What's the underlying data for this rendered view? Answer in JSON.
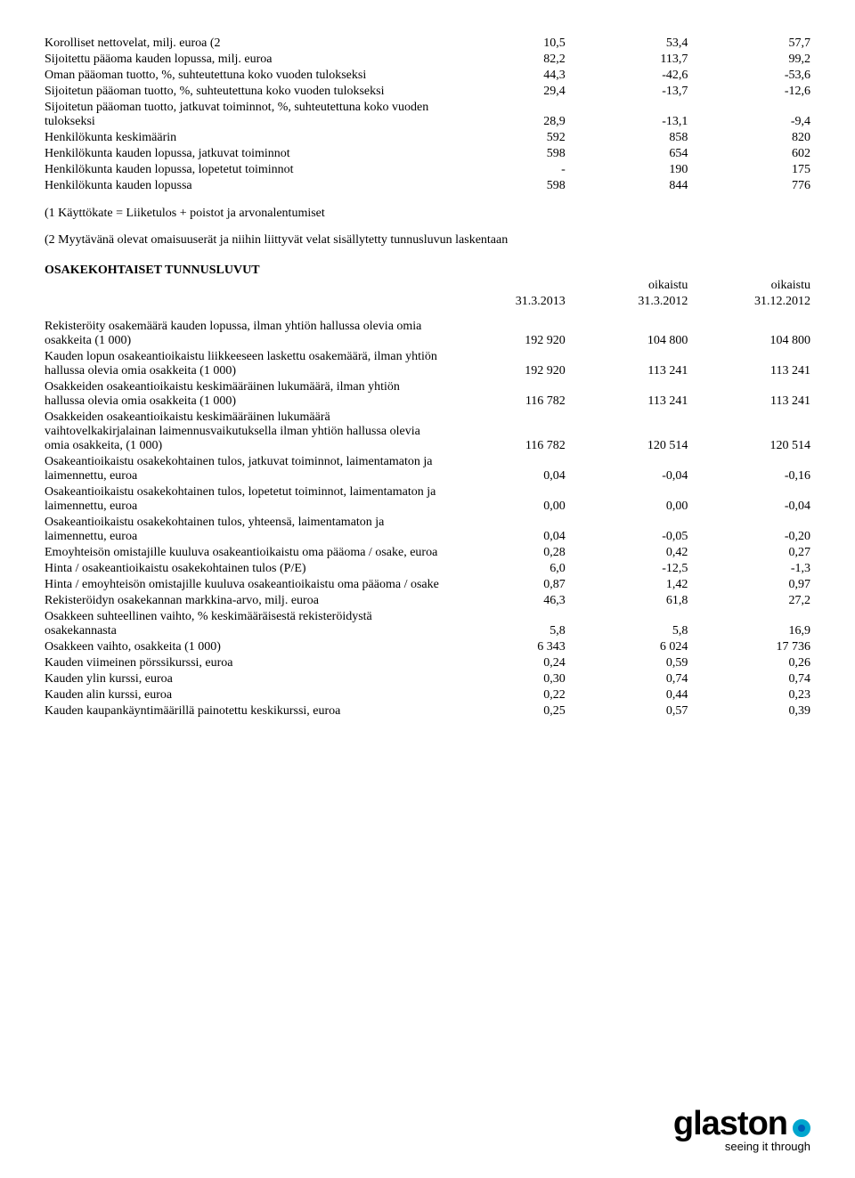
{
  "table1": {
    "rows": [
      {
        "label": "Korolliset nettovelat, milj. euroa (2",
        "c1": "10,5",
        "c2": "53,4",
        "c3": "57,7"
      },
      {
        "label": "Sijoitettu pääoma kauden lopussa, milj. euroa",
        "c1": "82,2",
        "c2": "113,7",
        "c3": "99,2"
      },
      {
        "label": "Oman pääoman tuotto, %, suhteutettuna koko vuoden tulokseksi",
        "c1": "44,3",
        "c2": "-42,6",
        "c3": "-53,6"
      },
      {
        "label": "Sijoitetun pääoman tuotto, %, suhteutettuna koko vuoden tulokseksi",
        "c1": "29,4",
        "c2": "-13,7",
        "c3": "-12,6"
      },
      {
        "label": "Sijoitetun pääoman tuotto, jatkuvat toiminnot, %, suhteutettuna koko vuoden tulokseksi",
        "c1": "28,9",
        "c2": "-13,1",
        "c3": "-9,4"
      },
      {
        "label": "Henkilökunta keskimäärin",
        "c1": "592",
        "c2": "858",
        "c3": "820"
      },
      {
        "label": "Henkilökunta kauden lopussa, jatkuvat toiminnot",
        "c1": "598",
        "c2": "654",
        "c3": "602"
      },
      {
        "label": "Henkilökunta kauden lopussa, lopetetut toiminnot",
        "c1": "-",
        "c2": "190",
        "c3": "175"
      },
      {
        "label": "Henkilökunta kauden lopussa",
        "c1": "598",
        "c2": "844",
        "c3": "776"
      }
    ]
  },
  "footnote1": "(1 Käyttökate = Liiketulos + poistot ja arvonalentumiset",
  "footnote2": "(2 Myytävänä olevat omaisuuserät ja niihin liittyvät velat sisällytetty tunnusluvun laskentaan",
  "section2_title": "OSAKEKOHTAISET TUNNUSLUVUT",
  "headers2": {
    "h1_top": "",
    "h1_bot": "31.3.2013",
    "h2_top": "oikaistu",
    "h2_bot": "31.3.2012",
    "h3_top": "oikaistu",
    "h3_bot": "31.12.2012"
  },
  "table2": {
    "rows": [
      {
        "label": "Rekisteröity osakemäärä kauden lopussa, ilman yhtiön hallussa olevia omia osakkeita (1 000)",
        "c1": "192 920",
        "c2": "104 800",
        "c3": "104 800"
      },
      {
        "label": "Kauden lopun osakeantioikaistu liikkeeseen laskettu osakemäärä, ilman yhtiön hallussa olevia omia osakkeita (1 000)",
        "c1": "192 920",
        "c2": "113 241",
        "c3": "113 241"
      },
      {
        "label": "Osakkeiden osakeantioikaistu keskimääräinen lukumäärä, ilman yhtiön hallussa olevia omia osakkeita (1 000)",
        "c1": "116 782",
        "c2": "113 241",
        "c3": "113 241"
      },
      {
        "label": "Osakkeiden osakeantioikaistu keskimääräinen lukumäärä vaihtovelkakirjalainan laimennusvaikutuksella ilman yhtiön hallussa olevia omia osakkeita, (1 000)",
        "c1": "116 782",
        "c2": "120 514",
        "c3": "120 514"
      },
      {
        "label": "Osakeantioikaistu osakekohtainen tulos, jatkuvat toiminnot, laimentamaton ja laimennettu, euroa",
        "c1": "0,04",
        "c2": "-0,04",
        "c3": "-0,16"
      },
      {
        "label": "Osakeantioikaistu osakekohtainen tulos, lopetetut toiminnot, laimentamaton ja laimennettu, euroa",
        "c1": "0,00",
        "c2": "0,00",
        "c3": "-0,04"
      },
      {
        "label": "Osakeantioikaistu osakekohtainen tulos, yhteensä, laimentamaton ja laimennettu, euroa",
        "c1": "0,04",
        "c2": "-0,05",
        "c3": "-0,20"
      },
      {
        "label": "Emoyhteisön omistajille kuuluva osakeantioikaistu oma pääoma / osake, euroa",
        "c1": "0,28",
        "c2": "0,42",
        "c3": "0,27"
      },
      {
        "label": "Hinta /  osakeantioikaistu osakekohtainen tulos  (P/E)",
        "c1": "6,0",
        "c2": "-12,5",
        "c3": "-1,3"
      },
      {
        "label": "Hinta / emoyhteisön omistajille kuuluva osakeantioikaistu oma pääoma / osake",
        "c1": "0,87",
        "c2": "1,42",
        "c3": "0,97"
      },
      {
        "label": "Rekisteröidyn osakekannan markkina-arvo, milj. euroa",
        "c1": "46,3",
        "c2": "61,8",
        "c3": "27,2"
      },
      {
        "label": "Osakkeen suhteellinen vaihto, % keskimääräisestä rekisteröidystä osakekannasta",
        "c1": "5,8",
        "c2": "5,8",
        "c3": "16,9"
      },
      {
        "label": "Osakkeen vaihto, osakkeita (1 000)",
        "c1": "6 343",
        "c2": "6 024",
        "c3": "17 736"
      },
      {
        "label": "Kauden viimeinen pörssikurssi, euroa",
        "c1": "0,24",
        "c2": "0,59",
        "c3": "0,26"
      },
      {
        "label": "Kauden ylin kurssi, euroa",
        "c1": "0,30",
        "c2": "0,74",
        "c3": "0,74"
      },
      {
        "label": "Kauden alin kurssi, euroa",
        "c1": "0,22",
        "c2": "0,44",
        "c3": "0,23"
      },
      {
        "label": "Kauden kaupankäyntimäärillä painotettu keskikurssi, euroa",
        "c1": "0,25",
        "c2": "0,57",
        "c3": "0,39"
      }
    ]
  },
  "logo": {
    "brand": "glaston",
    "tagline": "seeing it through"
  }
}
